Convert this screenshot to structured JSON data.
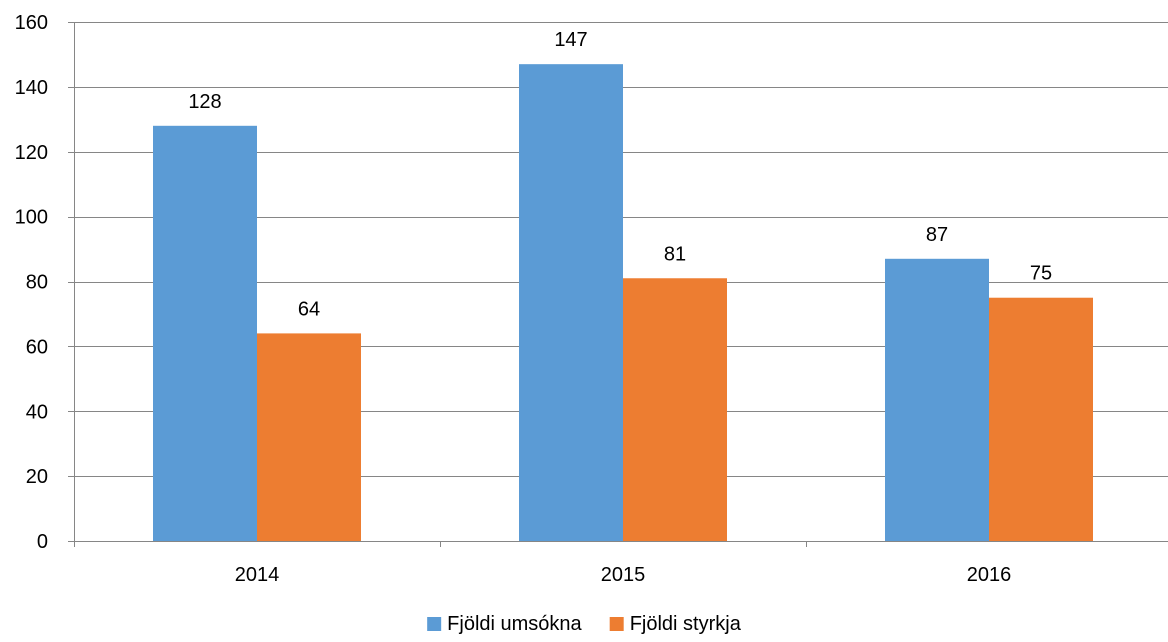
{
  "chart_data": {
    "type": "bar",
    "title": "",
    "xlabel": "",
    "ylabel": "",
    "categories": [
      "2014",
      "2015",
      "2016"
    ],
    "series": [
      {
        "name": "Fjöldi umsókna",
        "values": [
          128,
          147,
          87
        ],
        "color": "#5B9BD5"
      },
      {
        "name": "Fjöldi styrkja",
        "values": [
          64,
          81,
          75
        ],
        "color": "#ED7D31"
      }
    ],
    "ylim": [
      0,
      160
    ],
    "yticks": [
      "0",
      "20",
      "40",
      "60",
      "80",
      "100",
      "120",
      "140",
      "160"
    ],
    "grid": true,
    "legend_position": "bottom",
    "data_labels": true,
    "gridline_color": "#868686",
    "axis_color": "#868686"
  }
}
